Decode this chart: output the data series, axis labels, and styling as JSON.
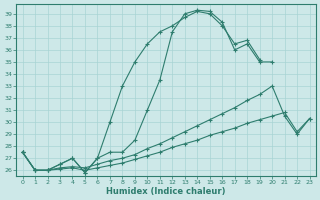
{
  "xlabel": "Humidex (Indice chaleur)",
  "background_color": "#cde8e8",
  "line_color": "#2e7d6e",
  "grid_color": "#a8d4d4",
  "xlim": [
    -0.5,
    23.5
  ],
  "ylim": [
    25.5,
    39.8
  ],
  "xticks": [
    0,
    1,
    2,
    3,
    4,
    5,
    6,
    7,
    8,
    9,
    10,
    11,
    12,
    13,
    14,
    15,
    16,
    17,
    18,
    19,
    20,
    21,
    22,
    23
  ],
  "yticks": [
    26,
    27,
    28,
    29,
    30,
    31,
    32,
    33,
    34,
    35,
    36,
    37,
    38,
    39
  ],
  "line1_x": [
    0,
    1,
    2,
    3,
    4,
    5,
    6,
    7,
    8,
    9,
    10,
    11,
    12,
    13,
    14,
    15,
    16,
    17,
    18,
    19
  ],
  "line1_y": [
    27.5,
    26.0,
    26.0,
    26.5,
    27.0,
    25.8,
    27.0,
    30.0,
    33.0,
    35.0,
    36.5,
    37.5,
    38.0,
    38.7,
    39.2,
    39.0,
    38.0,
    36.5,
    36.8,
    35.2
  ],
  "line2_x": [
    0,
    1,
    2,
    3,
    4,
    5,
    6,
    7,
    8,
    9,
    10,
    11,
    12,
    13,
    14,
    15,
    16,
    17,
    18,
    19,
    20,
    21,
    22,
    23
  ],
  "line2_y": [
    27.5,
    26.0,
    26.0,
    26.5,
    27.0,
    25.8,
    27.0,
    27.5,
    27.5,
    28.5,
    31.0,
    33.5,
    37.5,
    39.0,
    39.3,
    39.2,
    38.3,
    36.0,
    36.5,
    35.0,
    35.0,
    null,
    null,
    null
  ],
  "line3_x": [
    0,
    1,
    2,
    3,
    4,
    5,
    6,
    7,
    8,
    9,
    10,
    11,
    12,
    13,
    14,
    15,
    16,
    17,
    18,
    19,
    20,
    21,
    22,
    23
  ],
  "line3_y": [
    27.5,
    26.0,
    26.0,
    26.2,
    26.3,
    26.2,
    26.5,
    26.8,
    27.0,
    27.3,
    27.8,
    28.2,
    28.7,
    29.2,
    29.7,
    30.2,
    30.7,
    31.2,
    31.8,
    32.3,
    33.0,
    30.5,
    29.0,
    30.3
  ],
  "line4_x": [
    0,
    1,
    2,
    3,
    4,
    5,
    6,
    7,
    8,
    9,
    10,
    11,
    12,
    13,
    14,
    15,
    16,
    17,
    18,
    19,
    20,
    21,
    22,
    23
  ],
  "line4_y": [
    27.5,
    26.0,
    26.0,
    26.1,
    26.2,
    26.0,
    26.2,
    26.4,
    26.6,
    26.9,
    27.2,
    27.5,
    27.9,
    28.2,
    28.5,
    28.9,
    29.2,
    29.5,
    29.9,
    30.2,
    30.5,
    30.8,
    29.2,
    30.3
  ]
}
